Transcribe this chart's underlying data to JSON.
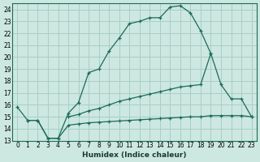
{
  "xlabel": "Humidex (Indice chaleur)",
  "background_color": "#cde8e0",
  "grid_color": "#a8cec5",
  "line_color": "#1a6b5a",
  "xlim": [
    -0.5,
    23.5
  ],
  "ylim": [
    13,
    24.5
  ],
  "yticks": [
    13,
    14,
    15,
    16,
    17,
    18,
    19,
    20,
    21,
    22,
    23,
    24
  ],
  "xticks": [
    0,
    1,
    2,
    3,
    4,
    5,
    6,
    7,
    8,
    9,
    10,
    11,
    12,
    13,
    14,
    15,
    16,
    17,
    18,
    19,
    20,
    21,
    22,
    23
  ],
  "line1_x": [
    0,
    1,
    2,
    3,
    4,
    5,
    6,
    7,
    8,
    9,
    10,
    11,
    12,
    13,
    14,
    15,
    16,
    17,
    18,
    19
  ],
  "line1_y": [
    15.8,
    14.7,
    14.7,
    13.2,
    13.2,
    15.3,
    16.2,
    18.7,
    19.0,
    20.5,
    21.6,
    22.8,
    23.0,
    23.3,
    23.3,
    24.2,
    24.3,
    23.7,
    22.2,
    20.3
  ],
  "line2_x": [
    5,
    6,
    7,
    8,
    9,
    10,
    11,
    12,
    13,
    14,
    15,
    16,
    17,
    18,
    19,
    20,
    21,
    22,
    23
  ],
  "line2_y": [
    15.0,
    15.2,
    15.5,
    15.7,
    16.0,
    16.3,
    16.5,
    16.7,
    16.9,
    17.1,
    17.3,
    17.5,
    17.6,
    17.7,
    20.3,
    17.7,
    16.5,
    16.5,
    15.0
  ],
  "line3_x": [
    1,
    2,
    3,
    4,
    5,
    6,
    7,
    8,
    9,
    10,
    11,
    12,
    13,
    14,
    15,
    16,
    17,
    18,
    19,
    20,
    21,
    22,
    23
  ],
  "line3_y": [
    14.7,
    14.7,
    13.2,
    13.2,
    14.3,
    14.4,
    14.5,
    14.55,
    14.6,
    14.65,
    14.7,
    14.75,
    14.8,
    14.85,
    14.9,
    14.95,
    15.0,
    15.0,
    15.1,
    15.1,
    15.1,
    15.1,
    15.0
  ]
}
